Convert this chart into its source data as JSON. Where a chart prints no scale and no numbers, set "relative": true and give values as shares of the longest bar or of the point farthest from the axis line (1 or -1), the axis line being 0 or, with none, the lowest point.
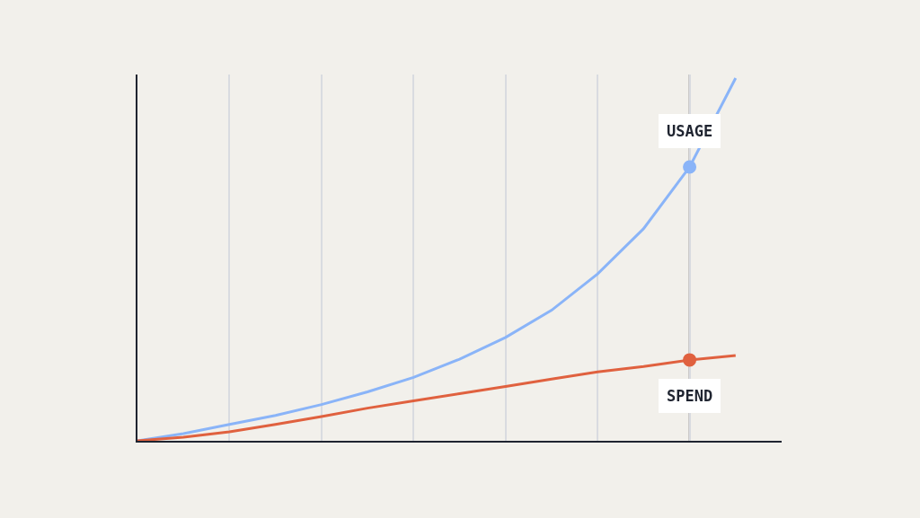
{
  "chart_data": {
    "type": "line",
    "relative": true,
    "categories": [
      null,
      null,
      null,
      null,
      null,
      null,
      null,
      null,
      null,
      null,
      null,
      null,
      null,
      null
    ],
    "series": [
      {
        "name": "USAGE",
        "color": "#8ab4f8",
        "values": [
          0,
          0.02,
          0.045,
          0.07,
          0.1,
          0.135,
          0.175,
          0.225,
          0.285,
          0.36,
          0.46,
          0.585,
          0.755,
          1.0
        ]
      },
      {
        "name": "SPEND",
        "color": "#e0613f",
        "values": [
          0,
          0.01,
          0.025,
          0.045,
          0.067,
          0.09,
          0.11,
          0.13,
          0.15,
          0.17,
          0.19,
          0.205,
          0.223,
          0.235
        ]
      }
    ],
    "grid": "x",
    "line_style": "solid"
  }
}
